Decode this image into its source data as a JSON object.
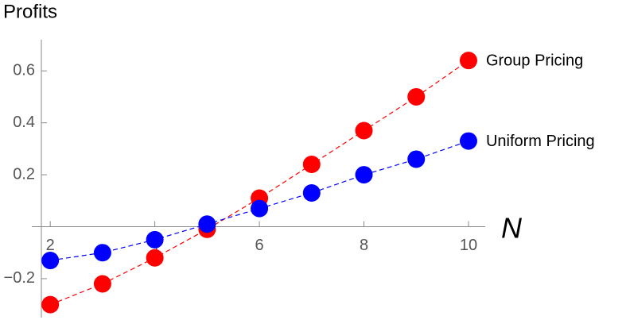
{
  "chart_data": {
    "type": "line",
    "y_label": "Profits",
    "x_label": "N",
    "x": [
      2,
      3,
      4,
      5,
      6,
      7,
      8,
      9,
      10
    ],
    "series": [
      {
        "name": "Group Pricing",
        "color": "#ff0000",
        "values": [
          -0.3,
          -0.22,
          -0.12,
          -0.01,
          0.11,
          0.24,
          0.37,
          0.5,
          0.64
        ]
      },
      {
        "name": "Uniform Pricing",
        "color": "#0000ff",
        "values": [
          -0.13,
          -0.1,
          -0.05,
          0.01,
          0.07,
          0.13,
          0.2,
          0.26,
          0.33
        ]
      }
    ],
    "xlim": [
      1.83,
      10.32
    ],
    "ylim": [
      -0.35,
      0.72
    ],
    "xticks": [
      2,
      4,
      6,
      8,
      10
    ],
    "yticks": [
      {
        "value": -0.2,
        "label": "−0.2"
      },
      0.2,
      0.4,
      0.6
    ]
  }
}
